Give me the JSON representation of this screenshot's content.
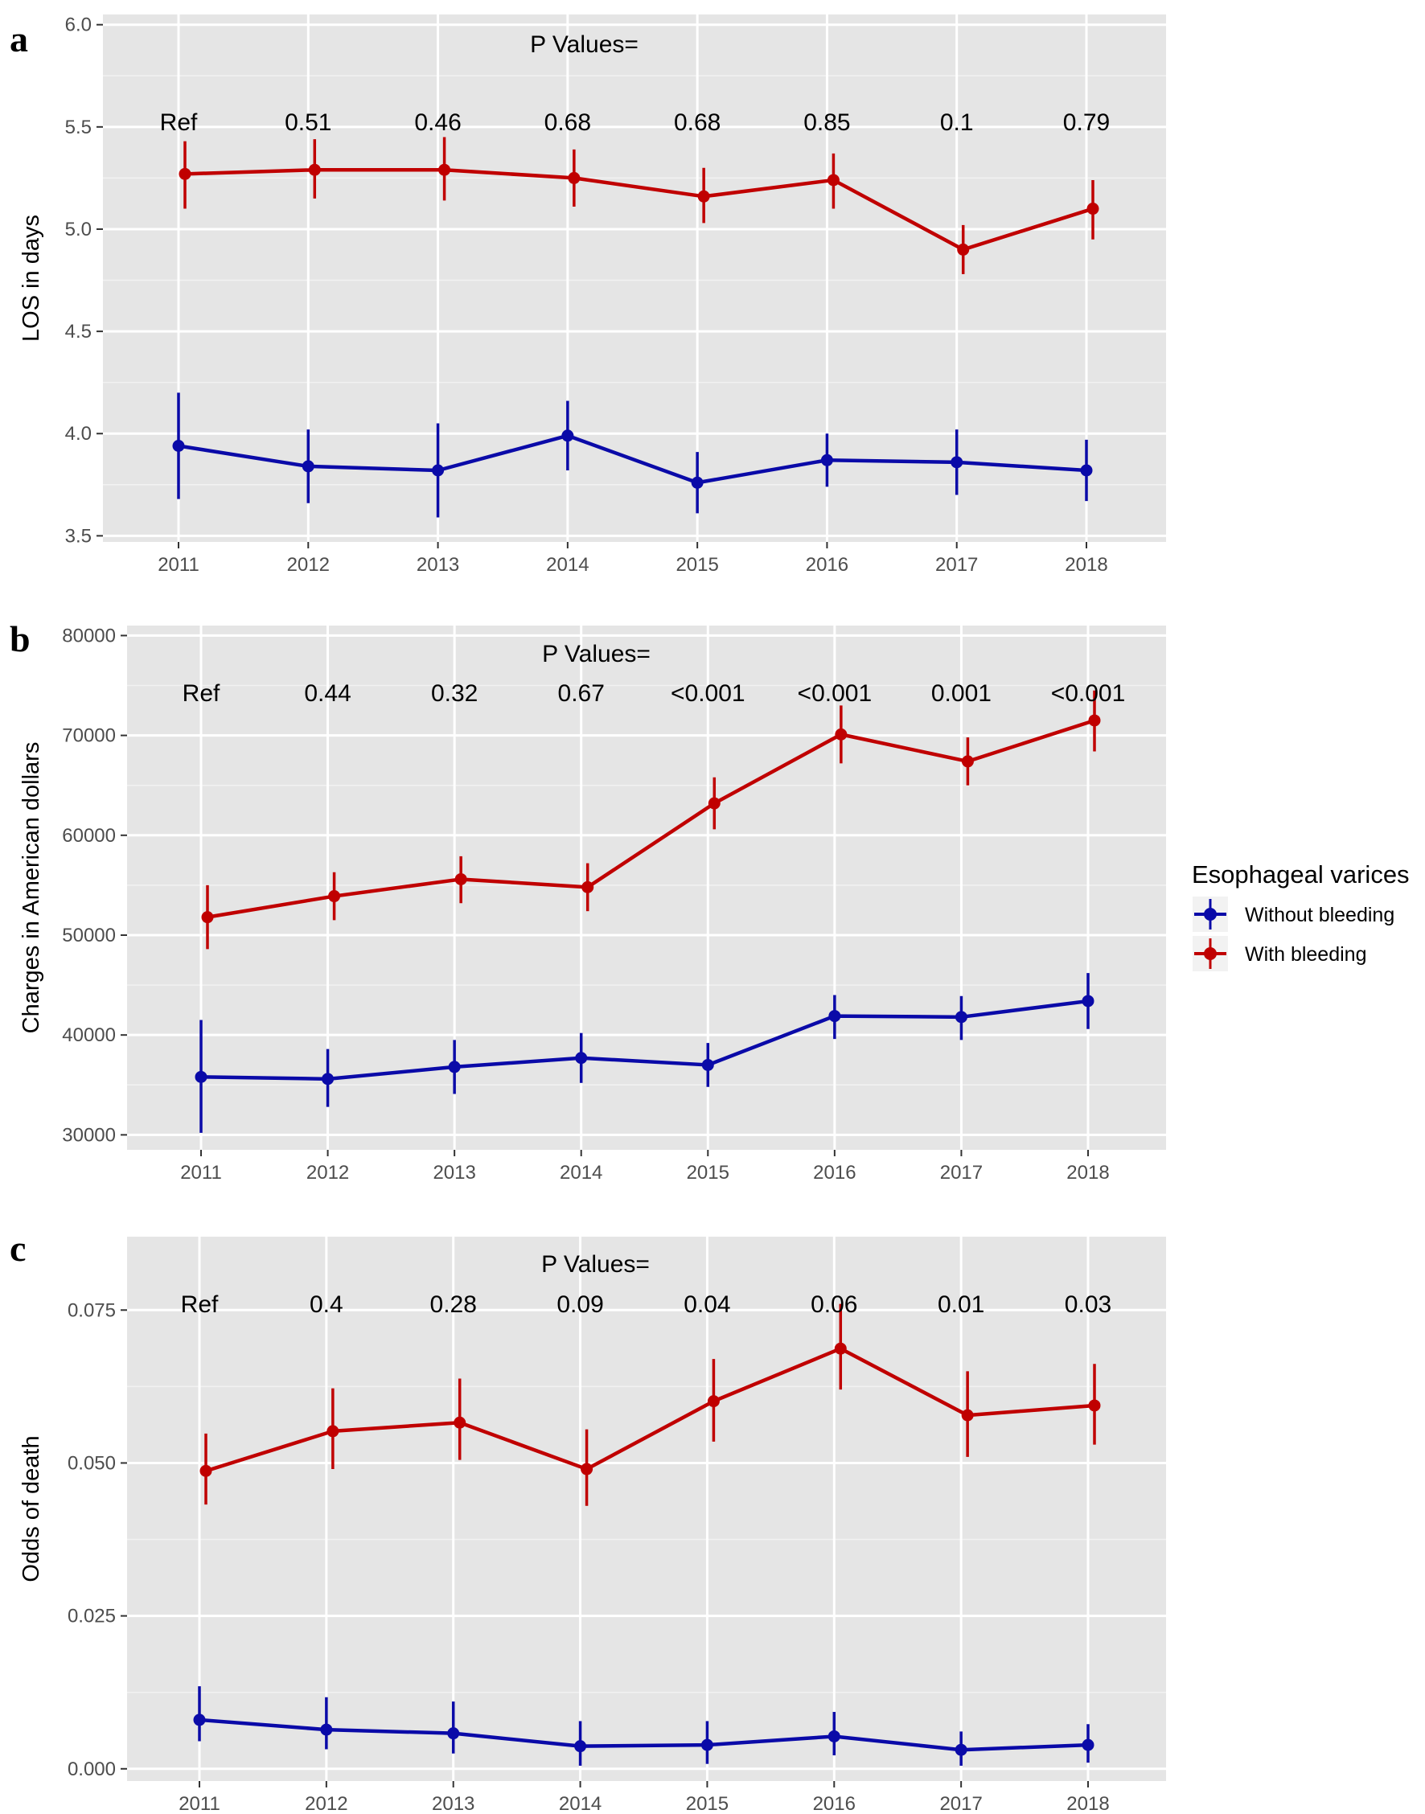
{
  "legend": {
    "title": "Esophageal varices",
    "items": [
      {
        "label": "Without bleeding",
        "color": "#0a0aa8"
      },
      {
        "label": "With bleeding",
        "color": "#c00000"
      }
    ]
  },
  "chart_data": [
    {
      "type": "line",
      "panel_letter": "a",
      "ylabel": "LOS in days",
      "xlabel": "",
      "x": [
        2011,
        2012,
        2013,
        2014,
        2015,
        2016,
        2017,
        2018
      ],
      "ylim": [
        3.47,
        6.05
      ],
      "yticks": [
        3.5,
        4.0,
        4.5,
        5.0,
        5.5,
        6.0
      ],
      "ytick_labels": [
        "3.5",
        "4.0",
        "4.5",
        "5.0",
        "5.5",
        "6.0"
      ],
      "grid": true,
      "p_values_title": "P Values=",
      "p_values": [
        "Ref",
        "0.51",
        "0.46",
        "0.68",
        "0.68",
        "0.85",
        "0.1",
        "0.79"
      ],
      "series": [
        {
          "name": "Without bleeding",
          "color": "#0a0aa8",
          "values": [
            3.94,
            3.84,
            3.82,
            3.99,
            3.76,
            3.87,
            3.86,
            3.82
          ],
          "lower": [
            3.68,
            3.66,
            3.59,
            3.82,
            3.61,
            3.74,
            3.7,
            3.67
          ],
          "upper": [
            4.2,
            4.02,
            4.05,
            4.16,
            3.91,
            4.0,
            4.02,
            3.97
          ]
        },
        {
          "name": "With bleeding",
          "color": "#c00000",
          "values": [
            5.27,
            5.29,
            5.29,
            5.25,
            5.16,
            5.24,
            4.9,
            5.1
          ],
          "lower": [
            5.1,
            5.15,
            5.14,
            5.11,
            5.03,
            5.1,
            4.78,
            4.95
          ],
          "upper": [
            5.43,
            5.44,
            5.45,
            5.39,
            5.3,
            5.37,
            5.02,
            5.24
          ]
        }
      ]
    },
    {
      "type": "line",
      "panel_letter": "b",
      "ylabel": "Charges in American dollars",
      "xlabel": "",
      "x": [
        2011,
        2012,
        2013,
        2014,
        2015,
        2016,
        2017,
        2018
      ],
      "ylim": [
        28500,
        81000
      ],
      "yticks": [
        30000,
        40000,
        50000,
        60000,
        70000,
        80000
      ],
      "ytick_labels": [
        "30000",
        "40000",
        "50000",
        "60000",
        "70000",
        "80000"
      ],
      "grid": true,
      "p_values_title": "P Values=",
      "p_values": [
        "Ref",
        "0.44",
        "0.32",
        "0.67",
        "<0.001",
        "<0.001",
        "0.001",
        "<0.001"
      ],
      "series": [
        {
          "name": "Without bleeding",
          "color": "#0a0aa8",
          "values": [
            35800,
            35600,
            36800,
            37700,
            37000,
            41900,
            41800,
            43400
          ],
          "lower": [
            30200,
            32800,
            34100,
            35200,
            34800,
            39600,
            39500,
            40600
          ],
          "upper": [
            41500,
            38600,
            39500,
            40200,
            39200,
            44000,
            43900,
            46200
          ]
        },
        {
          "name": "With bleeding",
          "color": "#c00000",
          "values": [
            51800,
            53900,
            55600,
            54800,
            63200,
            70100,
            67400,
            71500
          ],
          "lower": [
            48600,
            51500,
            53200,
            52400,
            60600,
            67200,
            65000,
            68400
          ],
          "upper": [
            55000,
            56300,
            57900,
            57200,
            65800,
            73000,
            69800,
            74500
          ]
        }
      ]
    },
    {
      "type": "line",
      "panel_letter": "c",
      "ylabel": "Odds of death",
      "xlabel": "",
      "x": [
        2011,
        2012,
        2013,
        2014,
        2015,
        2016,
        2017,
        2018
      ],
      "ylim": [
        -0.002,
        0.087
      ],
      "yticks": [
        0.0,
        0.025,
        0.05,
        0.075
      ],
      "ytick_labels": [
        "0.000",
        "0.025",
        "0.050",
        "0.075"
      ],
      "grid": true,
      "p_values_title": "P Values=",
      "p_values": [
        "Ref",
        "0.4",
        "0.28",
        "0.09",
        "0.04",
        "0.06",
        "0.01",
        "0.03"
      ],
      "series": [
        {
          "name": "Without bleeding",
          "color": "#0a0aa8",
          "values": [
            0.008,
            0.0064,
            0.0058,
            0.0037,
            0.0039,
            0.0053,
            0.0031,
            0.0039
          ],
          "lower": [
            0.0045,
            0.0032,
            0.0025,
            0.0005,
            0.0008,
            0.0022,
            0.0005,
            0.001
          ],
          "upper": [
            0.0135,
            0.0117,
            0.011,
            0.0078,
            0.0078,
            0.0093,
            0.0061,
            0.0073
          ]
        },
        {
          "name": "With bleeding",
          "color": "#c00000",
          "values": [
            0.0487,
            0.0552,
            0.0566,
            0.049,
            0.0601,
            0.0687,
            0.0578,
            0.0594
          ],
          "lower": [
            0.0432,
            0.049,
            0.0505,
            0.043,
            0.0535,
            0.062,
            0.051,
            0.053
          ],
          "upper": [
            0.0548,
            0.0622,
            0.0638,
            0.0555,
            0.067,
            0.076,
            0.065,
            0.0662
          ]
        }
      ]
    }
  ]
}
